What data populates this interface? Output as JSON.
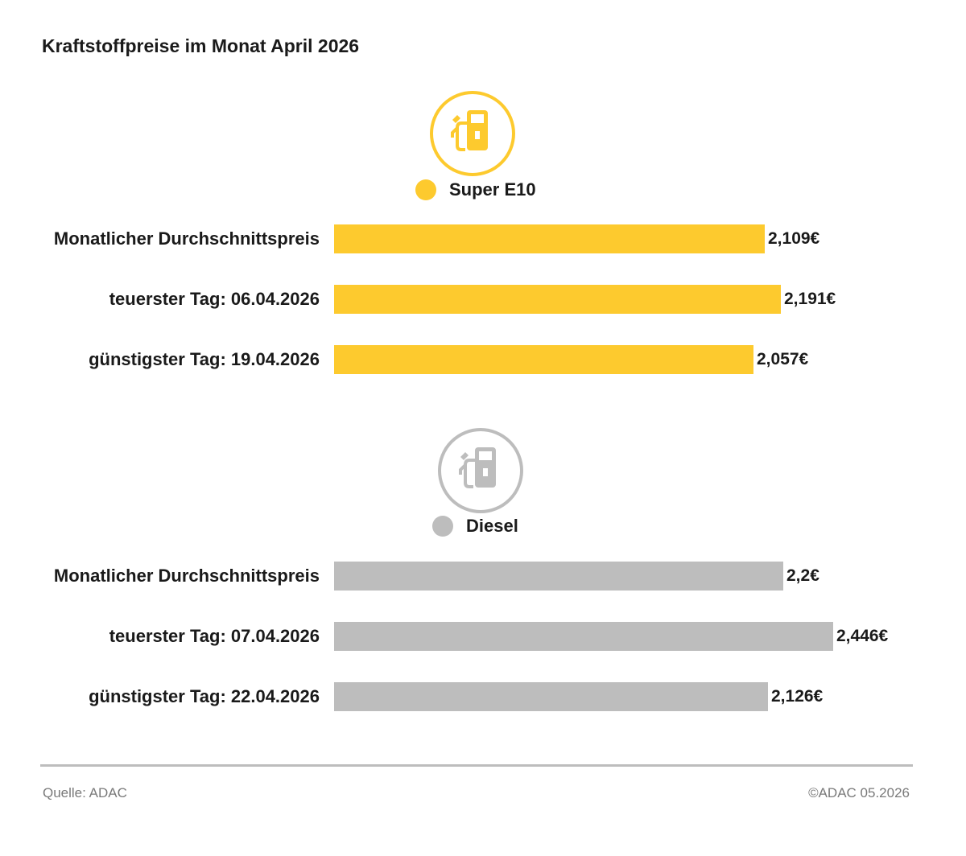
{
  "title": "Kraftstoffpreise im Monat April 2026",
  "chart_data": {
    "type": "bar",
    "orientation": "horizontal",
    "title": "Kraftstoffpreise im Monat April 2026",
    "xlim": [
      0,
      2.446
    ],
    "series": [
      {
        "name": "Super E10",
        "color": "#fdca2e",
        "icon": "fuel-pump-icon",
        "categories": [
          "Monatlicher Durchschnittspreis",
          "teuerster Tag: 06.04.2026",
          "günstigster Tag: 19.04.2026"
        ],
        "values": [
          2.109,
          2.191,
          2.057
        ],
        "value_labels": [
          "2,109€",
          "2,191€",
          "2,057€"
        ]
      },
      {
        "name": "Diesel",
        "color": "#bdbdbd",
        "icon": "fuel-pump-icon",
        "categories": [
          "Monatlicher Durchschnittspreis",
          "teuerster Tag: 07.04.2026",
          "günstigster Tag: 22.04.2026"
        ],
        "values": [
          2.2,
          2.446,
          2.126
        ],
        "value_labels": [
          "2,2€",
          "2,446€",
          "2,126€"
        ]
      }
    ]
  },
  "footer": {
    "source": "Quelle: ADAC",
    "copyright": "©ADAC 05.2026"
  }
}
